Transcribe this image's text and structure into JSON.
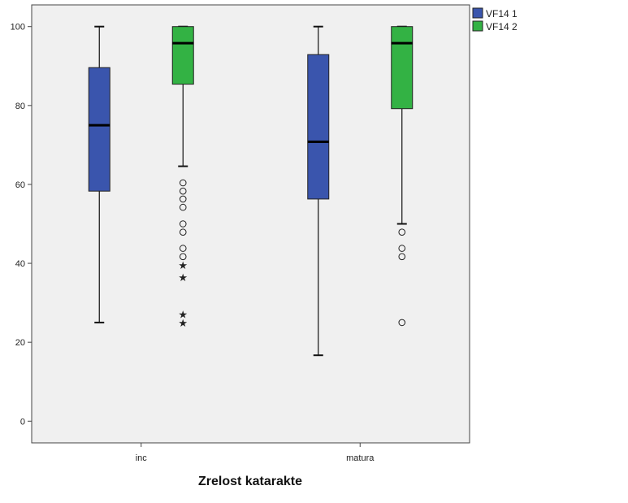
{
  "chart_data": {
    "type": "boxplot",
    "xlabel": "Zrelost katarakte",
    "ylabel": "",
    "ylim": [
      -5.5,
      105.5
    ],
    "yticks": [
      0,
      20,
      40,
      60,
      80,
      100
    ],
    "categories": [
      "inc",
      "matura"
    ],
    "legend_position": "top-right",
    "grid": false,
    "series": [
      {
        "name": "VF14 1",
        "color": "#3A55AD",
        "boxes": [
          {
            "whisker_low": 25.0,
            "q1": 58.3,
            "median": 75.0,
            "q3": 89.6,
            "whisker_high": 100.0,
            "outliers": [],
            "extremes": []
          },
          {
            "whisker_low": 16.7,
            "q1": 56.3,
            "median": 70.8,
            "q3": 92.9,
            "whisker_high": 100.0,
            "outliers": [],
            "extremes": []
          }
        ]
      },
      {
        "name": "VF14 2",
        "color": "#33B244",
        "boxes": [
          {
            "whisker_low": 64.6,
            "q1": 85.4,
            "median": 95.8,
            "q3": 100.0,
            "whisker_high": 100.0,
            "outliers": [
              60.4,
              58.3,
              56.3,
              54.2,
              50.0,
              47.9,
              43.8,
              41.7
            ],
            "extremes": [
              39.6,
              36.5,
              27.1,
              25.0
            ]
          },
          {
            "whisker_low": 50.0,
            "q1": 79.2,
            "median": 95.8,
            "q3": 100.0,
            "whisker_high": 100.0,
            "outliers": [
              47.9,
              43.8,
              41.7,
              25.0
            ],
            "extremes": []
          }
        ]
      }
    ]
  }
}
